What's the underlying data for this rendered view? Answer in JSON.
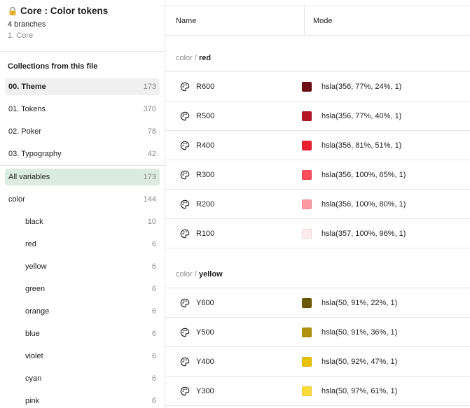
{
  "sidebar": {
    "title": "Core : Color tokens",
    "branches": "4 branches",
    "core": "1. Core",
    "collections_title": "Collections from this file",
    "collections": [
      {
        "label": "00. Theme",
        "count": "173"
      },
      {
        "label": "01. Tokens",
        "count": "370"
      },
      {
        "label": "02. Poker",
        "count": "78"
      },
      {
        "label": "03. Typography",
        "count": "42"
      }
    ],
    "all_variables": {
      "label": "All variables",
      "count": "173"
    },
    "color": {
      "label": "color",
      "count": "144"
    },
    "groups": [
      {
        "label": "black",
        "count": "10"
      },
      {
        "label": "red",
        "count": "6"
      },
      {
        "label": "yellow",
        "count": "6"
      },
      {
        "label": "green",
        "count": "6"
      },
      {
        "label": "orange",
        "count": "6"
      },
      {
        "label": "blue",
        "count": "6"
      },
      {
        "label": "violet",
        "count": "6"
      },
      {
        "label": "cyan",
        "count": "6"
      },
      {
        "label": "pink",
        "count": "6"
      }
    ]
  },
  "table": {
    "headers": {
      "name": "Name",
      "mode": "Mode"
    },
    "sections": [
      {
        "prefix": "color / ",
        "name": "red",
        "rows": [
          {
            "name": "R600",
            "value": "hsla(356, 77%, 24%, 1)",
            "color": "#6c0e16"
          },
          {
            "name": "R500",
            "value": "hsla(356, 77%, 40%, 1)",
            "color": "#b41725"
          },
          {
            "name": "R400",
            "value": "hsla(356, 81%, 51%, 1)",
            "color": "#e9202f"
          },
          {
            "name": "R300",
            "value": "hsla(356, 100%, 65%, 1)",
            "color": "#ff4d5a"
          },
          {
            "name": "R200",
            "value": "hsla(356, 100%, 80%, 1)",
            "color": "#ff99a1"
          },
          {
            "name": "R100",
            "value": "hsla(357, 100%, 96%, 1)",
            "color": "#ffebed"
          }
        ]
      },
      {
        "prefix": "color / ",
        "name": "yellow",
        "rows": [
          {
            "name": "Y600",
            "value": "hsla(50, 91%, 22%, 1)",
            "color": "#6b5a05"
          },
          {
            "name": "Y500",
            "value": "hsla(50, 91%, 36%, 1)",
            "color": "#b0940f"
          },
          {
            "name": "Y400",
            "value": "hsla(50, 92%, 47%, 1)",
            "color": "#e6c20a"
          },
          {
            "name": "Y300",
            "value": "hsla(50, 97%, 61%, 1)",
            "color": "#fcdb3a"
          }
        ]
      }
    ]
  }
}
